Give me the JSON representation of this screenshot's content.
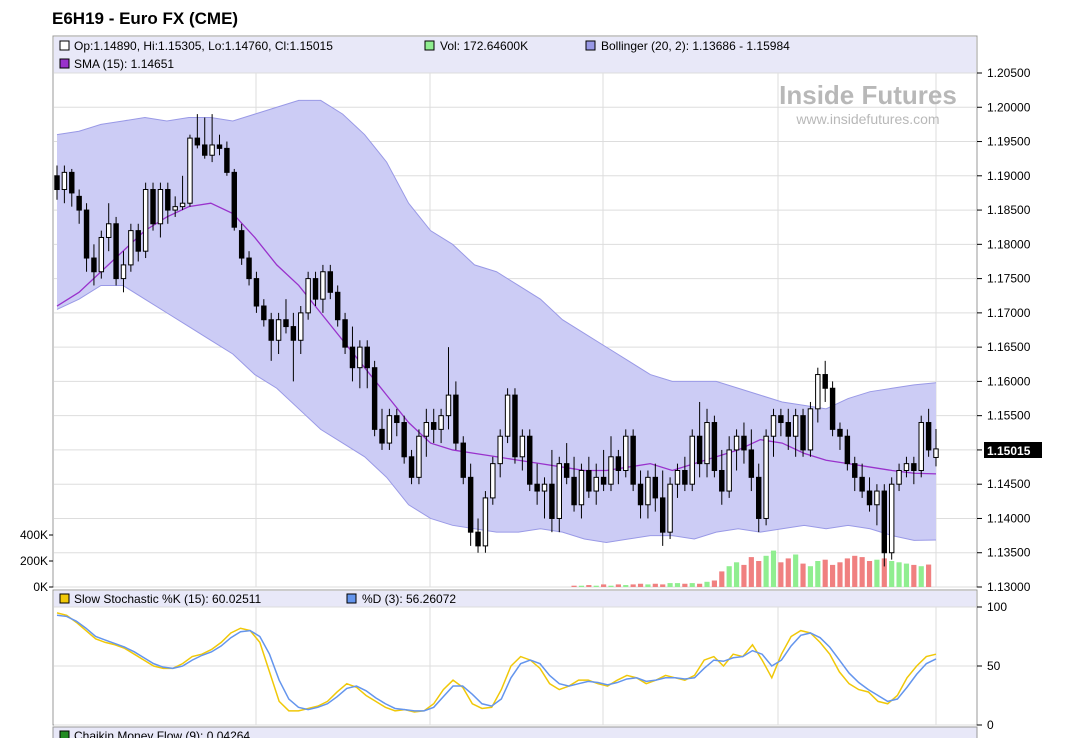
{
  "title": "E6H19 - Euro FX (CME)",
  "watermark": {
    "brand": "Inside Futures",
    "url": "www.insidefutures.com"
  },
  "legend_main": {
    "ohlc": "Op:1.14890, Hi:1.15305, Lo:1.14760, Cl:1.15015",
    "vol": "Vol: 172.64600K",
    "bollinger": "Bollinger (20, 2): 1.13686 - 1.15984",
    "sma": "SMA (15): 1.14651"
  },
  "legend_stoch": {
    "k": "Slow Stochastic %K (15): 60.02511",
    "d": "%D (3): 56.26072"
  },
  "legend_cmf": {
    "label": "Chaikin Money Flow (9): 0.04264"
  },
  "last_price_label": "1.15015",
  "colors": {
    "band_fill": "#ccccf5",
    "band_line": "#9999e6",
    "sma": "#9932cc",
    "vol_up": "#90ee90",
    "vol_down": "#f08080",
    "k_line": "#f0c808",
    "d_line": "#6495ed",
    "header_bg": "#e8e8f8"
  },
  "chart_data": [
    {
      "type": "candlestick",
      "title": "E6H19 - Euro FX (CME)",
      "ylim": [
        1.13,
        1.205
      ],
      "price_ticks": [
        "1.13000",
        "1.13500",
        "1.14000",
        "1.14500",
        "1.15000",
        "1.15500",
        "1.16000",
        "1.16500",
        "1.17000",
        "1.17500",
        "1.18000",
        "1.18500",
        "1.19000",
        "1.19500",
        "1.20000",
        "1.20500"
      ],
      "volume_ticks": [
        "0K",
        "200K",
        "400K"
      ],
      "volume_max_k": 400,
      "ohlc": [
        [
          1.19,
          1.1915,
          1.1865,
          1.188
        ],
        [
          1.188,
          1.1915,
          1.186,
          1.1905
        ],
        [
          1.1905,
          1.191,
          1.1855,
          1.1875
        ],
        [
          1.187,
          1.188,
          1.183,
          1.185
        ],
        [
          1.185,
          1.186,
          1.176,
          1.178
        ],
        [
          1.178,
          1.18,
          1.174,
          1.176
        ],
        [
          1.176,
          1.182,
          1.175,
          1.181
        ],
        [
          1.181,
          1.186,
          1.179,
          1.183
        ],
        [
          1.183,
          1.184,
          1.174,
          1.175
        ],
        [
          1.175,
          1.179,
          1.173,
          1.177
        ],
        [
          1.177,
          1.183,
          1.176,
          1.182
        ],
        [
          1.182,
          1.183,
          1.1775,
          1.179
        ],
        [
          1.179,
          1.189,
          1.178,
          1.188
        ],
        [
          1.188,
          1.189,
          1.182,
          1.183
        ],
        [
          1.183,
          1.189,
          1.181,
          1.188
        ],
        [
          1.188,
          1.189,
          1.183,
          1.185
        ],
        [
          1.185,
          1.187,
          1.184,
          1.1855
        ],
        [
          1.1855,
          1.19,
          1.185,
          1.186
        ],
        [
          1.186,
          1.196,
          1.1855,
          1.1955
        ],
        [
          1.1955,
          1.199,
          1.194,
          1.1945
        ],
        [
          1.1945,
          1.1985,
          1.1925,
          1.193
        ],
        [
          1.193,
          1.199,
          1.192,
          1.1945
        ],
        [
          1.1945,
          1.196,
          1.193,
          1.194
        ],
        [
          1.194,
          1.195,
          1.19,
          1.1905
        ],
        [
          1.1905,
          1.191,
          1.182,
          1.1825
        ],
        [
          1.182,
          1.183,
          1.177,
          1.178
        ],
        [
          1.178,
          1.179,
          1.174,
          1.175
        ],
        [
          1.175,
          1.176,
          1.17,
          1.171
        ],
        [
          1.171,
          1.172,
          1.168,
          1.169
        ],
        [
          1.169,
          1.17,
          1.163,
          1.166
        ],
        [
          1.166,
          1.17,
          1.164,
          1.169
        ],
        [
          1.169,
          1.172,
          1.167,
          1.168
        ],
        [
          1.168,
          1.17,
          1.16,
          1.166
        ],
        [
          1.166,
          1.171,
          1.164,
          1.17
        ],
        [
          1.17,
          1.176,
          1.169,
          1.175
        ],
        [
          1.175,
          1.176,
          1.171,
          1.172
        ],
        [
          1.172,
          1.177,
          1.17,
          1.176
        ],
        [
          1.176,
          1.177,
          1.172,
          1.173
        ],
        [
          1.173,
          1.174,
          1.168,
          1.169
        ],
        [
          1.169,
          1.17,
          1.164,
          1.165
        ],
        [
          1.165,
          1.168,
          1.16,
          1.162
        ],
        [
          1.162,
          1.166,
          1.159,
          1.165
        ],
        [
          1.165,
          1.166,
          1.159,
          1.162
        ],
        [
          1.162,
          1.163,
          1.152,
          1.153
        ],
        [
          1.153,
          1.156,
          1.15,
          1.151
        ],
        [
          1.151,
          1.156,
          1.15,
          1.155
        ],
        [
          1.155,
          1.156,
          1.152,
          1.154
        ],
        [
          1.154,
          1.155,
          1.148,
          1.149
        ],
        [
          1.149,
          1.15,
          1.145,
          1.146
        ],
        [
          1.146,
          1.153,
          1.145,
          1.152
        ],
        [
          1.152,
          1.156,
          1.149,
          1.154
        ],
        [
          1.154,
          1.156,
          1.151,
          1.153
        ],
        [
          1.153,
          1.156,
          1.151,
          1.155
        ],
        [
          1.155,
          1.165,
          1.153,
          1.158
        ],
        [
          1.158,
          1.16,
          1.15,
          1.151
        ],
        [
          1.151,
          1.152,
          1.145,
          1.146
        ],
        [
          1.146,
          1.148,
          1.136,
          1.138
        ],
        [
          1.138,
          1.14,
          1.135,
          1.136
        ],
        [
          1.136,
          1.144,
          1.135,
          1.143
        ],
        [
          1.143,
          1.149,
          1.142,
          1.148
        ],
        [
          1.148,
          1.153,
          1.146,
          1.152
        ],
        [
          1.152,
          1.159,
          1.151,
          1.158
        ],
        [
          1.158,
          1.159,
          1.148,
          1.149
        ],
        [
          1.149,
          1.153,
          1.147,
          1.152
        ],
        [
          1.152,
          1.153,
          1.144,
          1.145
        ],
        [
          1.145,
          1.148,
          1.142,
          1.144
        ],
        [
          1.144,
          1.146,
          1.14,
          1.145
        ],
        [
          1.145,
          1.15,
          1.138,
          1.14
        ],
        [
          1.14,
          1.149,
          1.138,
          1.148
        ],
        [
          1.148,
          1.151,
          1.145,
          1.146
        ],
        [
          1.146,
          1.149,
          1.141,
          1.142
        ],
        [
          1.142,
          1.148,
          1.14,
          1.147
        ],
        [
          1.147,
          1.149,
          1.143,
          1.144
        ],
        [
          1.144,
          1.148,
          1.142,
          1.146
        ],
        [
          1.146,
          1.15,
          1.144,
          1.145
        ],
        [
          1.145,
          1.152,
          1.144,
          1.149
        ],
        [
          1.149,
          1.15,
          1.145,
          1.147
        ],
        [
          1.147,
          1.153,
          1.146,
          1.152
        ],
        [
          1.152,
          1.153,
          1.144,
          1.145
        ],
        [
          1.145,
          1.147,
          1.14,
          1.142
        ],
        [
          1.142,
          1.147,
          1.14,
          1.146
        ],
        [
          1.146,
          1.148,
          1.141,
          1.143
        ],
        [
          1.143,
          1.147,
          1.136,
          1.138
        ],
        [
          1.138,
          1.146,
          1.137,
          1.145
        ],
        [
          1.145,
          1.148,
          1.143,
          1.147
        ],
        [
          1.147,
          1.149,
          1.144,
          1.145
        ],
        [
          1.145,
          1.153,
          1.144,
          1.152
        ],
        [
          1.152,
          1.157,
          1.146,
          1.148
        ],
        [
          1.148,
          1.156,
          1.146,
          1.154
        ],
        [
          1.154,
          1.155,
          1.146,
          1.147
        ],
        [
          1.147,
          1.15,
          1.142,
          1.144
        ],
        [
          1.144,
          1.152,
          1.143,
          1.15
        ],
        [
          1.15,
          1.153,
          1.147,
          1.152
        ],
        [
          1.152,
          1.154,
          1.148,
          1.15
        ],
        [
          1.15,
          1.153,
          1.144,
          1.146
        ],
        [
          1.146,
          1.148,
          1.138,
          1.14
        ],
        [
          1.14,
          1.153,
          1.139,
          1.152
        ],
        [
          1.152,
          1.156,
          1.149,
          1.155
        ],
        [
          1.155,
          1.156,
          1.152,
          1.154
        ],
        [
          1.154,
          1.156,
          1.15,
          1.152
        ],
        [
          1.152,
          1.156,
          1.149,
          1.155
        ],
        [
          1.155,
          1.156,
          1.149,
          1.15
        ],
        [
          1.15,
          1.157,
          1.149,
          1.156
        ],
        [
          1.156,
          1.162,
          1.154,
          1.161
        ],
        [
          1.161,
          1.163,
          1.157,
          1.159
        ],
        [
          1.159,
          1.16,
          1.152,
          1.153
        ],
        [
          1.153,
          1.154,
          1.15,
          1.152
        ],
        [
          1.152,
          1.153,
          1.147,
          1.148
        ],
        [
          1.148,
          1.149,
          1.144,
          1.146
        ],
        [
          1.146,
          1.148,
          1.143,
          1.144
        ],
        [
          1.144,
          1.146,
          1.141,
          1.142
        ],
        [
          1.142,
          1.145,
          1.139,
          1.144
        ],
        [
          1.144,
          1.145,
          1.133,
          1.135
        ],
        [
          1.135,
          1.146,
          1.134,
          1.145
        ],
        [
          1.145,
          1.148,
          1.144,
          1.147
        ],
        [
          1.147,
          1.149,
          1.146,
          1.148
        ],
        [
          1.148,
          1.149,
          1.145,
          1.147
        ],
        [
          1.147,
          1.155,
          1.146,
          1.154
        ],
        [
          1.154,
          1.156,
          1.149,
          1.15
        ],
        [
          1.1489,
          1.15305,
          1.1476,
          1.15015
        ]
      ],
      "volume_k": [
        0,
        0,
        0,
        0,
        0,
        0,
        0,
        0,
        0,
        0,
        0,
        0,
        0,
        0,
        0,
        0,
        0,
        0,
        0,
        0,
        0,
        0,
        0,
        0,
        0,
        0,
        0,
        0,
        0,
        0,
        0,
        0,
        0,
        0,
        0,
        0,
        0,
        0,
        0,
        0,
        0,
        0,
        0,
        0,
        0,
        0,
        0,
        0,
        0,
        0,
        0,
        0,
        0,
        0,
        0,
        0,
        0,
        0,
        0,
        0,
        0,
        0,
        0,
        0,
        0,
        0,
        0,
        0,
        0,
        0,
        10,
        10,
        15,
        10,
        20,
        10,
        20,
        15,
        20,
        25,
        20,
        25,
        20,
        30,
        30,
        25,
        30,
        25,
        40,
        50,
        120,
        160,
        190,
        170,
        230,
        200,
        240,
        280,
        190,
        220,
        250,
        180,
        160,
        200,
        210,
        170,
        190,
        220,
        240,
        230,
        200,
        210,
        220,
        200,
        190,
        180,
        170,
        160,
        172.646
      ],
      "bollinger": {
        "period": 20,
        "stddev": 2,
        "upper": [
          1.196,
          1.1965,
          1.1975,
          1.198,
          1.1985,
          1.198,
          1.1985,
          1.1985,
          1.198,
          1.199,
          1.2,
          1.201,
          1.201,
          1.199,
          1.196,
          1.192,
          1.186,
          1.182,
          1.18,
          1.177,
          1.176,
          1.174,
          1.172,
          1.169,
          1.167,
          1.165,
          1.163,
          1.161,
          1.16,
          1.16,
          1.16,
          1.159,
          1.158,
          1.157,
          1.1565,
          1.156,
          1.1575,
          1.1585,
          1.159,
          1.1595,
          1.1598
        ],
        "lower": [
          1.1705,
          1.172,
          1.174,
          1.174,
          1.172,
          1.17,
          1.168,
          1.166,
          1.164,
          1.161,
          1.159,
          1.156,
          1.153,
          1.151,
          1.149,
          1.146,
          1.142,
          1.14,
          1.139,
          1.1385,
          1.138,
          1.138,
          1.1385,
          1.138,
          1.137,
          1.1365,
          1.137,
          1.1375,
          1.1375,
          1.137,
          1.138,
          1.1385,
          1.138,
          1.1385,
          1.139,
          1.1385,
          1.139,
          1.1385,
          1.1375,
          1.1368,
          1.13686
        ]
      },
      "sma": {
        "period": 15,
        "values": [
          1.171,
          1.173,
          1.176,
          1.179,
          1.182,
          1.184,
          1.1855,
          1.186,
          1.1845,
          1.181,
          1.177,
          1.174,
          1.17,
          1.166,
          1.162,
          1.158,
          1.154,
          1.151,
          1.15,
          1.1495,
          1.149,
          1.1485,
          1.148,
          1.1475,
          1.147,
          1.147,
          1.1475,
          1.148,
          1.147,
          1.148,
          1.149,
          1.15,
          1.1515,
          1.151,
          1.1495,
          1.1485,
          1.148,
          1.1475,
          1.147,
          1.1466,
          1.14651
        ]
      }
    },
    {
      "type": "line",
      "title": "Slow Stochastic %K (15) / %D (3)",
      "ylim": [
        0,
        100
      ],
      "y_ticks": [
        "0",
        "50",
        "100"
      ],
      "series": [
        {
          "name": "%K",
          "values": [
            95,
            93,
            87,
            80,
            73,
            70,
            68,
            65,
            60,
            55,
            50,
            48,
            48,
            52,
            58,
            60,
            64,
            70,
            78,
            82,
            80,
            70,
            45,
            20,
            12,
            12,
            14,
            16,
            20,
            28,
            35,
            32,
            25,
            20,
            15,
            12,
            13,
            11,
            12,
            18,
            30,
            38,
            32,
            18,
            14,
            15,
            30,
            50,
            58,
            55,
            48,
            35,
            30,
            33,
            38,
            38,
            35,
            33,
            38,
            42,
            40,
            35,
            38,
            42,
            40,
            38,
            42,
            55,
            58,
            50,
            60,
            58,
            68,
            55,
            40,
            60,
            75,
            80,
            78,
            70,
            60,
            45,
            35,
            30,
            28,
            20,
            18,
            25,
            40,
            50,
            58,
            60
          ]
        },
        {
          "name": "%D",
          "values": [
            93,
            92,
            88,
            82,
            75,
            72,
            69,
            66,
            62,
            57,
            52,
            49,
            48,
            50,
            55,
            59,
            62,
            67,
            74,
            79,
            80,
            75,
            60,
            38,
            22,
            15,
            13,
            15,
            18,
            24,
            31,
            33,
            29,
            23,
            18,
            14,
            13,
            12,
            12,
            15,
            24,
            33,
            33,
            26,
            18,
            16,
            22,
            40,
            52,
            55,
            52,
            42,
            35,
            33,
            35,
            37,
            36,
            34,
            36,
            39,
            40,
            37,
            38,
            40,
            40,
            39,
            40,
            48,
            55,
            54,
            57,
            58,
            63,
            60,
            50,
            55,
            67,
            76,
            78,
            74,
            66,
            55,
            44,
            36,
            30,
            25,
            20,
            22,
            32,
            43,
            52,
            56
          ]
        }
      ]
    }
  ]
}
